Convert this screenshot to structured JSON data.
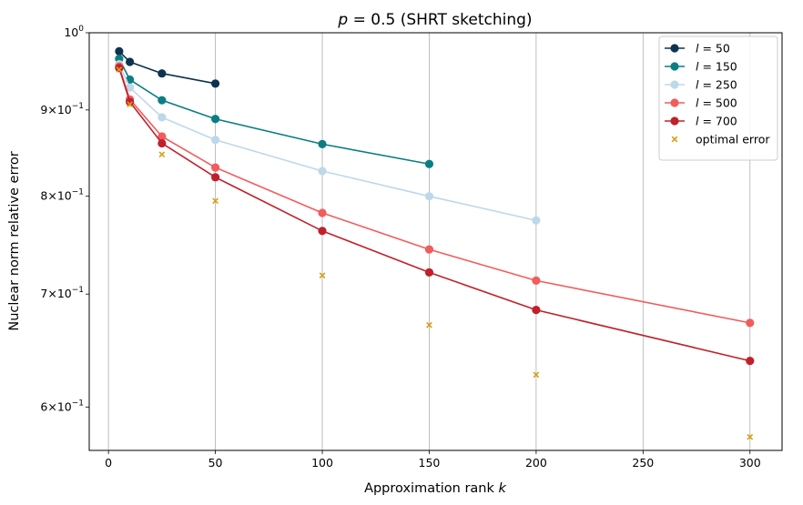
{
  "chart_data": {
    "type": "line",
    "title": "p = 0.5 (SHRT sketching)",
    "title_parts": {
      "p": "p",
      "eq": " = 0.5 ",
      "rest": "(SHRT sketching)"
    },
    "xlabel": {
      "text": "Approximation rank ",
      "var": "k"
    },
    "ylabel": "Nuclear norm relative error",
    "y_scale": "log",
    "xlim": [
      -9,
      315
    ],
    "ylim": [
      0.5655,
      1.0
    ],
    "grid": "vertical lines at x ticks",
    "legend_position": "top-right",
    "x_ticks": [
      {
        "value": 0,
        "label": "0"
      },
      {
        "value": 50,
        "label": "50"
      },
      {
        "value": 100,
        "label": "100"
      },
      {
        "value": 150,
        "label": "150"
      },
      {
        "value": 200,
        "label": "200"
      },
      {
        "value": 250,
        "label": "250"
      },
      {
        "value": 300,
        "label": "300"
      }
    ],
    "y_ticks": [
      {
        "value": 1.0,
        "base": "10",
        "exp": "0",
        "mant": ""
      },
      {
        "value": 0.9,
        "base": "10",
        "exp": "−1",
        "mant": "9×"
      },
      {
        "value": 0.8,
        "base": "10",
        "exp": "−1",
        "mant": "8×"
      },
      {
        "value": 0.7,
        "base": "10",
        "exp": "−1",
        "mant": "7×"
      },
      {
        "value": 0.6,
        "base": "10",
        "exp": "−1",
        "mant": "6×"
      }
    ],
    "series": [
      {
        "name": "l = 50",
        "legend_var": "l",
        "legend_rest": " = 50",
        "color": "#0d3350",
        "marker": "o",
        "x": [
          5,
          10,
          25,
          50
        ],
        "y": [
          0.975,
          0.961,
          0.946,
          0.933
        ]
      },
      {
        "name": "l = 150",
        "legend_var": "l",
        "legend_rest": " = 150",
        "color": "#0a7e82",
        "marker": "o",
        "x": [
          5,
          10,
          25,
          50,
          100,
          150
        ],
        "y": [
          0.965,
          0.938,
          0.912,
          0.889,
          0.859,
          0.836
        ]
      },
      {
        "name": "l = 250",
        "legend_var": "l",
        "legend_rest": " = 250",
        "color": "#bdd8ea",
        "marker": "o",
        "x": [
          5,
          10,
          25,
          50,
          100,
          150,
          200
        ],
        "y": [
          0.958,
          0.928,
          0.891,
          0.864,
          0.828,
          0.8,
          0.774
        ]
      },
      {
        "name": "l = 500",
        "legend_var": "l",
        "legend_rest": " = 500",
        "color": "#f25c5c",
        "marker": "o",
        "x": [
          5,
          10,
          25,
          50,
          100,
          150,
          200,
          300
        ],
        "y": [
          0.955,
          0.913,
          0.868,
          0.832,
          0.782,
          0.744,
          0.713,
          0.673
        ]
      },
      {
        "name": "l = 700",
        "legend_var": "l",
        "legend_rest": " = 700",
        "color": "#c0202a",
        "marker": "o",
        "x": [
          5,
          10,
          25,
          50,
          100,
          150,
          200,
          300
        ],
        "y": [
          0.953,
          0.91,
          0.86,
          0.821,
          0.763,
          0.721,
          0.685,
          0.639
        ]
      },
      {
        "name": "optimal error",
        "color": "#d4a017",
        "marker": "x",
        "scatter": true,
        "x": [
          5,
          10,
          25,
          50,
          100,
          150,
          200,
          300
        ],
        "y": [
          0.951,
          0.907,
          0.847,
          0.795,
          0.718,
          0.671,
          0.627,
          0.576
        ]
      }
    ]
  }
}
